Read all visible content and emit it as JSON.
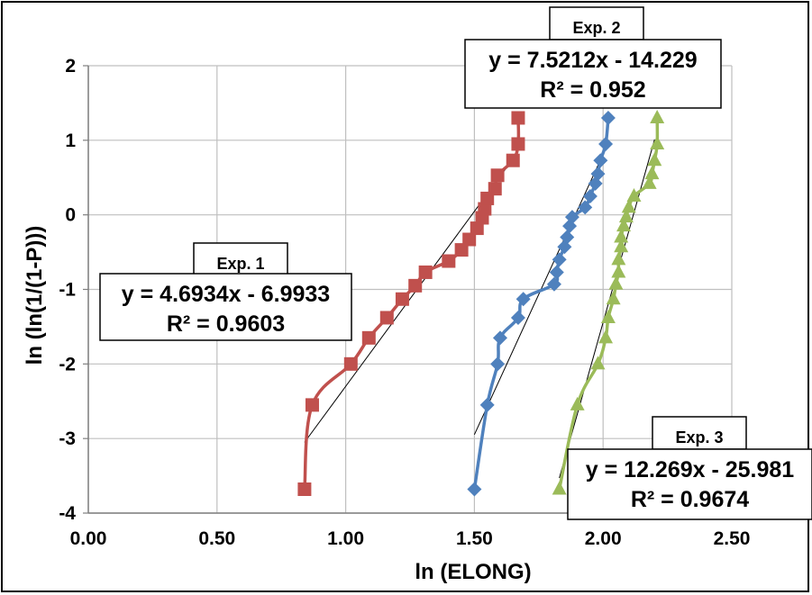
{
  "chart_data": {
    "type": "scatter",
    "xlabel": "ln (ELONG)",
    "ylabel": "ln (ln(1/(1-P)))",
    "xlim": [
      0,
      2.5
    ],
    "ylim": [
      -4,
      2
    ],
    "x_ticks": [
      "0.00",
      "0.50",
      "1.00",
      "1.50",
      "2.00",
      "2.50"
    ],
    "y_ticks": [
      "-4",
      "-3",
      "-2",
      "-1",
      "0",
      "1",
      "2"
    ],
    "grid": true,
    "series": [
      {
        "name": "Exp. 1",
        "color": "#c0504d",
        "marker": "square",
        "equation": "y = 4.6934x - 6.9933",
        "r2": "R² = 0.9603",
        "trend": {
          "slope": 4.6934,
          "intercept": -6.9933,
          "x_range": [
            0.84,
            1.67
          ]
        },
        "points": [
          [
            0.84,
            -3.68
          ],
          [
            0.87,
            -2.55
          ],
          [
            1.02,
            -2.0
          ],
          [
            1.09,
            -1.65
          ],
          [
            1.16,
            -1.38
          ],
          [
            1.22,
            -1.13
          ],
          [
            1.27,
            -0.95
          ],
          [
            1.31,
            -0.77
          ],
          [
            1.4,
            -0.62
          ],
          [
            1.45,
            -0.47
          ],
          [
            1.48,
            -0.33
          ],
          [
            1.51,
            -0.18
          ],
          [
            1.53,
            -0.04
          ],
          [
            1.54,
            0.08
          ],
          [
            1.55,
            0.22
          ],
          [
            1.58,
            0.35
          ],
          [
            1.59,
            0.53
          ],
          [
            1.65,
            0.73
          ],
          [
            1.67,
            0.95
          ],
          [
            1.67,
            1.3
          ]
        ]
      },
      {
        "name": "Exp. 2",
        "color": "#4f81bd",
        "marker": "diamond",
        "equation": "y = 7.5212x - 14.229",
        "r2": "R² = 0.952",
        "trend": {
          "slope": 7.5212,
          "intercept": -14.229,
          "x_range": [
            1.5,
            2.0
          ]
        },
        "points": [
          [
            1.5,
            -3.68
          ],
          [
            1.55,
            -2.55
          ],
          [
            1.59,
            -2.0
          ],
          [
            1.6,
            -1.65
          ],
          [
            1.67,
            -1.38
          ],
          [
            1.69,
            -1.13
          ],
          [
            1.81,
            -0.93
          ],
          [
            1.82,
            -0.77
          ],
          [
            1.83,
            -0.6
          ],
          [
            1.85,
            -0.43
          ],
          [
            1.86,
            -0.3
          ],
          [
            1.87,
            -0.15
          ],
          [
            1.88,
            -0.03
          ],
          [
            1.93,
            0.1
          ],
          [
            1.95,
            0.25
          ],
          [
            1.97,
            0.42
          ],
          [
            1.98,
            0.55
          ],
          [
            1.99,
            0.73
          ],
          [
            2.01,
            0.95
          ],
          [
            2.02,
            1.3
          ]
        ]
      },
      {
        "name": "Exp. 3",
        "color": "#9bbb59",
        "marker": "triangle",
        "equation": "y = 12.269x - 25.981",
        "r2": "R² = 0.9674",
        "trend": {
          "slope": 12.269,
          "intercept": -25.981,
          "x_range": [
            1.83,
            2.2
          ]
        },
        "points": [
          [
            1.83,
            -3.68
          ],
          [
            1.9,
            -2.55
          ],
          [
            1.98,
            -2.0
          ],
          [
            2.01,
            -1.65
          ],
          [
            2.02,
            -1.38
          ],
          [
            2.04,
            -1.13
          ],
          [
            2.05,
            -0.93
          ],
          [
            2.06,
            -0.77
          ],
          [
            2.06,
            -0.6
          ],
          [
            2.07,
            -0.43
          ],
          [
            2.07,
            -0.3
          ],
          [
            2.08,
            -0.15
          ],
          [
            2.09,
            -0.03
          ],
          [
            2.1,
            0.1
          ],
          [
            2.12,
            0.25
          ],
          [
            2.18,
            0.42
          ],
          [
            2.19,
            0.55
          ],
          [
            2.2,
            0.73
          ],
          [
            2.21,
            0.95
          ],
          [
            2.21,
            1.3
          ]
        ]
      }
    ]
  }
}
